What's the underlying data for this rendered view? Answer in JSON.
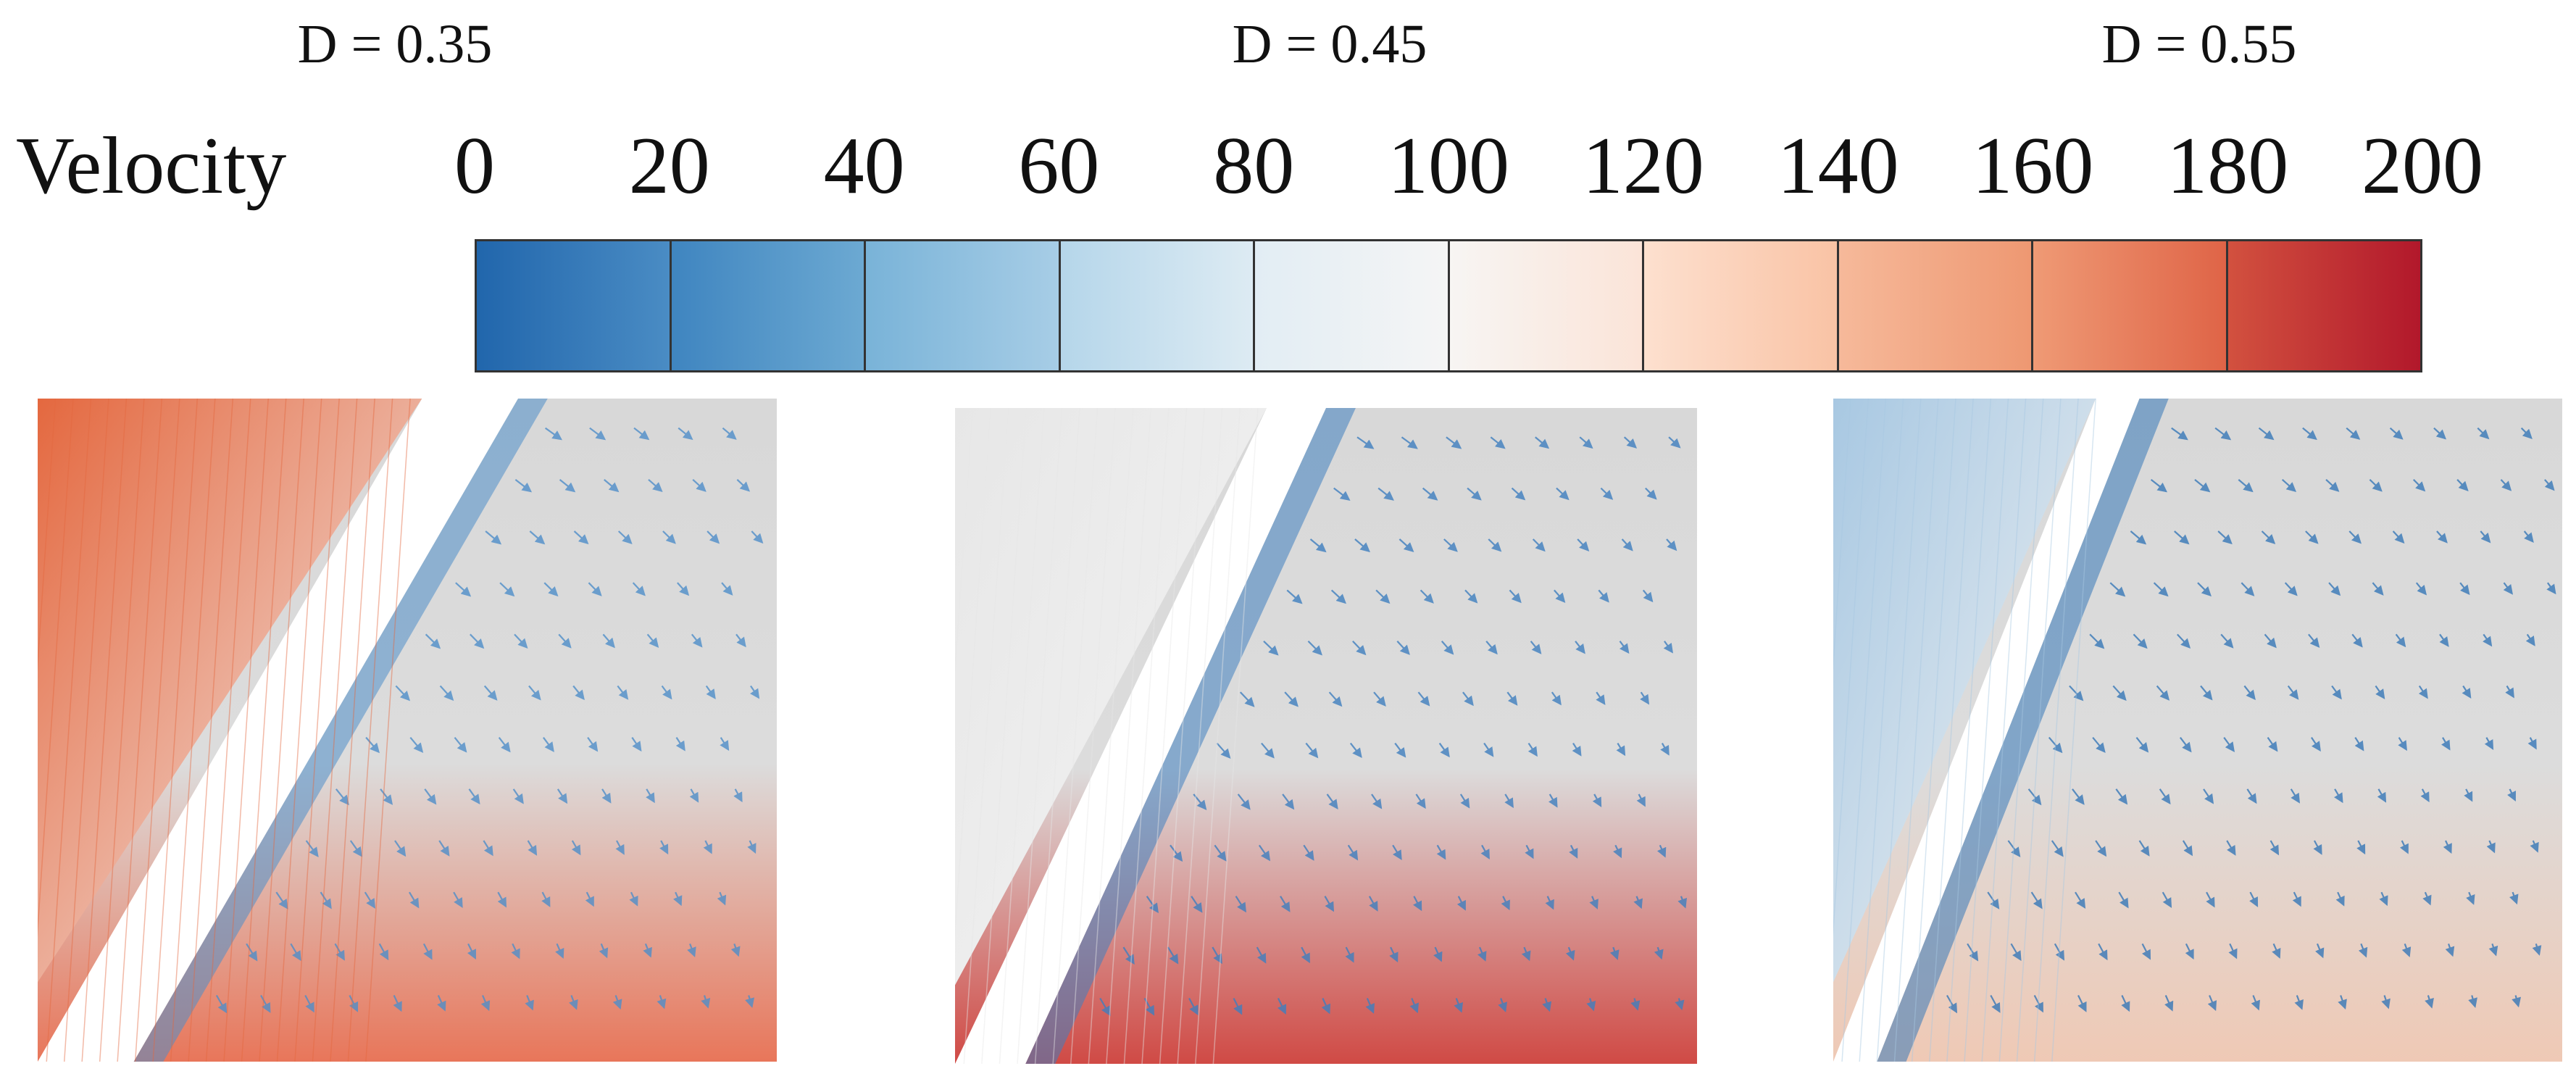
{
  "panels": [
    {
      "title": "D = 0.35",
      "upper_region_color": "#e4683f",
      "lower_region_color": "#e8765a",
      "wall_color": "#4f8ec9"
    },
    {
      "title": "D = 0.45",
      "upper_region_color": "#e7e7e7",
      "lower_region_color": "#d04a45",
      "wall_color": "#3f7fbf"
    },
    {
      "title": "D = 0.55",
      "upper_region_color": "#a8c8e2",
      "lower_region_color": "#efc9b5",
      "wall_color": "#3778b8"
    }
  ],
  "colorbar": {
    "label": "Velocity",
    "ticks": [
      "0",
      "20",
      "40",
      "60",
      "80",
      "100",
      "120",
      "140",
      "160",
      "180",
      "200"
    ],
    "segments": [
      [
        "#2166ac",
        "#4a8cc4"
      ],
      [
        "#3f85c0",
        "#6ca9d2"
      ],
      [
        "#79b3d8",
        "#a7cde6"
      ],
      [
        "#b5d6ea",
        "#ddebf3"
      ],
      [
        "#e2edf4",
        "#f5f5f5"
      ],
      [
        "#f7f5f3",
        "#fbe4d8"
      ],
      [
        "#fde0cf",
        "#f9c3a5"
      ],
      [
        "#f6b99a",
        "#ee9872"
      ],
      [
        "#ef9a75",
        "#df6447"
      ],
      [
        "#d2513f",
        "#b2182b"
      ]
    ],
    "colormap": "RdBu_r"
  }
}
